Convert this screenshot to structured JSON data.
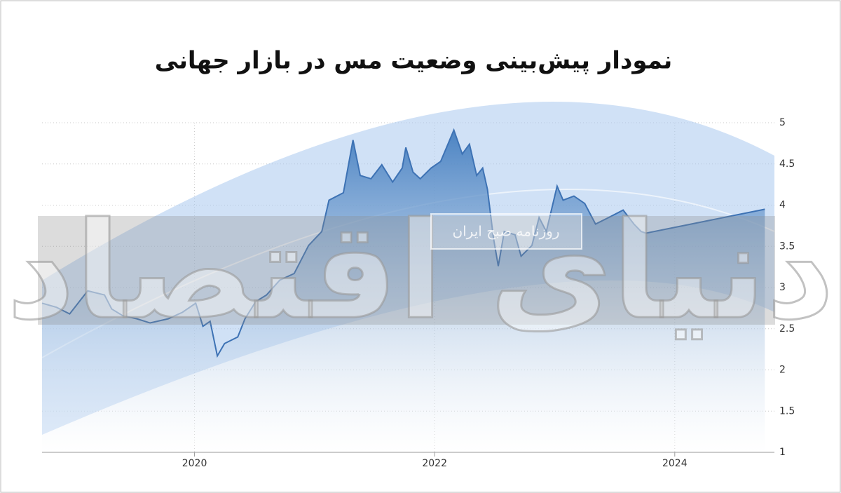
{
  "chart_data": {
    "type": "area",
    "title": "نمودار پیش‌بینی وضعیت مس در بازار جهانی",
    "watermark": "دنیای اقتصاد",
    "watermark_subtitle": "روزنامه صبح ایران",
    "xlim": [
      2018.73,
      2024.76
    ],
    "xticks": [
      2020,
      2022,
      2024
    ],
    "ylim": [
      1,
      5
    ],
    "yticks": [
      1,
      1.5,
      2,
      2.5,
      3,
      3.5,
      4,
      4.5,
      5
    ],
    "grid": true,
    "series": [
      {
        "color": "#3d72b4",
        "x": [
          2018.73,
          2018.85,
          2018.96,
          2019.11,
          2019.25,
          2019.31,
          2019.4,
          2019.52,
          2019.63,
          2019.78,
          2019.9,
          2020.01,
          2020.07,
          2020.13,
          2020.19,
          2020.25,
          2020.36,
          2020.42,
          2020.51,
          2020.6,
          2020.71,
          2020.83,
          2020.95,
          2021.06,
          2021.12,
          2021.24,
          2021.32,
          2021.38,
          2021.47,
          2021.56,
          2021.65,
          2021.73,
          2021.76,
          2021.82,
          2021.88,
          2021.97,
          2022.05,
          2022.16,
          2022.23,
          2022.29,
          2022.35,
          2022.4,
          2022.44,
          2022.49,
          2022.53,
          2022.58,
          2022.67,
          2022.72,
          2022.81,
          2022.87,
          2022.93,
          2023.02,
          2023.07,
          2023.16,
          2023.25,
          2023.34,
          2023.45,
          2023.57,
          2023.66,
          2023.72,
          2023.76,
          2024.75
        ],
        "values": [
          2.81,
          2.76,
          2.68,
          2.96,
          2.91,
          2.74,
          2.66,
          2.62,
          2.57,
          2.62,
          2.7,
          2.81,
          2.53,
          2.59,
          2.17,
          2.32,
          2.4,
          2.62,
          2.83,
          2.91,
          3.09,
          3.17,
          3.51,
          3.68,
          4.06,
          4.15,
          4.79,
          4.36,
          4.32,
          4.49,
          4.28,
          4.45,
          4.7,
          4.4,
          4.32,
          4.45,
          4.53,
          4.91,
          4.62,
          4.74,
          4.36,
          4.45,
          4.19,
          3.6,
          3.26,
          3.68,
          3.64,
          3.38,
          3.51,
          3.85,
          3.68,
          4.23,
          4.06,
          4.11,
          4.02,
          3.77,
          3.85,
          3.94,
          3.77,
          3.68,
          3.66,
          3.95
        ]
      }
    ]
  }
}
